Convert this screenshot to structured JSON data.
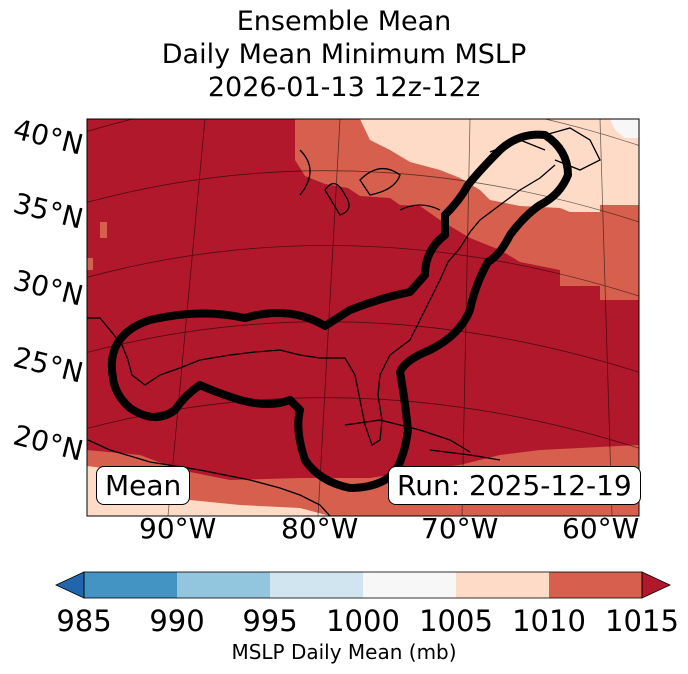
{
  "title": {
    "line1": "Ensemble Mean",
    "line2": "Daily Mean Minimum MSLP",
    "line3": "2026-01-13 12z-12z"
  },
  "map": {
    "lat_labels": [
      "40°N",
      "35°N",
      "30°N",
      "25°N",
      "20°N"
    ],
    "lon_labels": [
      "90°W",
      "80°W",
      "70°W",
      "60°W"
    ],
    "mean_box": "Mean",
    "run_box": "Run: 2025-12-19"
  },
  "colorbar": {
    "ticks": [
      "985",
      "990",
      "995",
      "1000",
      "1005",
      "1010",
      "1015"
    ],
    "label": "MSLP Daily Mean (mb)",
    "colors": [
      "#2166ac",
      "#4393c3",
      "#92c5de",
      "#d1e5f0",
      "#f7f7f7",
      "#fddbc7",
      "#d6604d",
      "#b2182b"
    ]
  },
  "colors": {
    "dark_red": "#b2182b",
    "mid_red": "#d6604d",
    "light_pink": "#fddbc7",
    "white": "#f7f7f7",
    "contour": "#000000"
  }
}
